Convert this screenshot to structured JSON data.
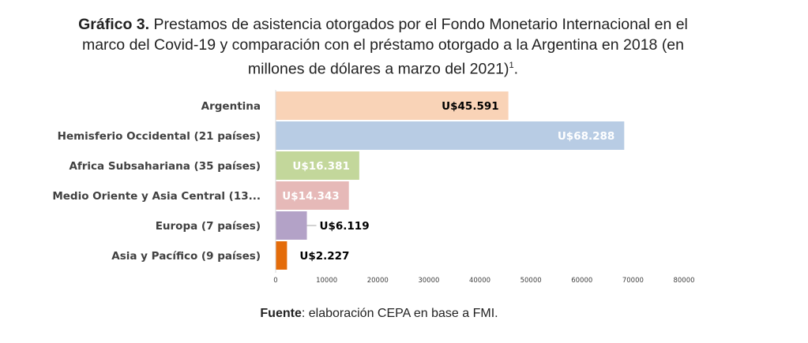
{
  "title": {
    "prefix": "Gráfico 3.",
    "line1": "Prestamos de asistencia otorgados por el Fondo Monetario Internacional en el",
    "line2": "marco del Covid-19 y comparación con el préstamo otorgado a la Argentina en 2018 (en",
    "line3": "millones de dólares a marzo del 2021)",
    "footnote": "1",
    "end": "."
  },
  "source": {
    "label": "Fuente",
    "text": ": elaboración CEPA en base a FMI."
  },
  "chart_data": {
    "type": "bar",
    "orientation": "horizontal",
    "categories": [
      "Argentina",
      "Hemisferio Occidental (21 países)",
      "Africa Subsahariana (35 países)",
      "Medio Oriente y Asia Central (13...",
      "Europa (7 países)",
      "Asia y Pacífico (9 países)"
    ],
    "values": [
      45591,
      68288,
      16381,
      14343,
      6119,
      2227
    ],
    "data_labels": [
      "U$45.591",
      "U$68.288",
      "U$16.381",
      "U$14.343",
      "U$6.119",
      "U$2.227"
    ],
    "colors": [
      "#f9d3b7",
      "#b8cce4",
      "#c3d79b",
      "#e6b9b8",
      "#b3a2c7",
      "#e46c0a"
    ],
    "label_colors": [
      "#000000",
      "#ffffff",
      "#ffffff",
      "#ffffff",
      "#000000",
      "#000000"
    ],
    "label_inside": [
      true,
      true,
      true,
      true,
      false,
      false
    ],
    "xlim": [
      0,
      80000
    ],
    "xticks": [
      0,
      10000,
      20000,
      30000,
      40000,
      50000,
      60000,
      70000,
      80000
    ],
    "grid": false
  }
}
